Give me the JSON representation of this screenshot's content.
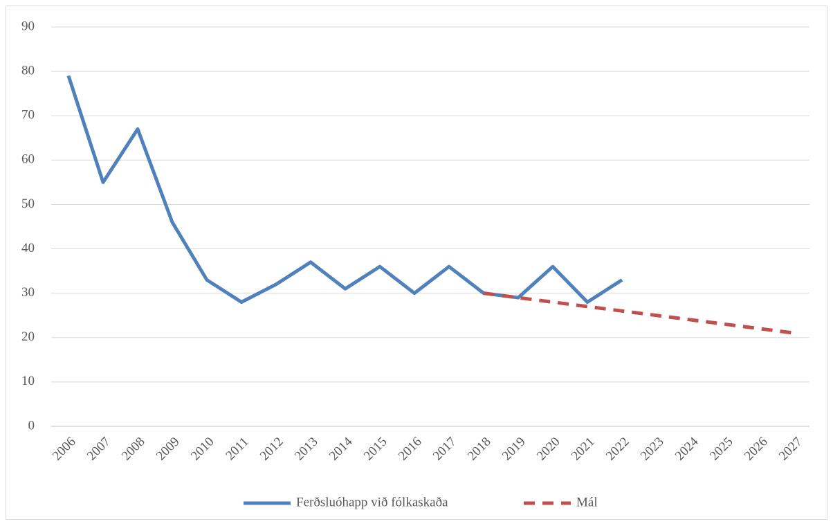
{
  "chart_data": {
    "type": "line",
    "categories": [
      "2006",
      "2007",
      "2008",
      "2009",
      "2010",
      "2011",
      "2012",
      "2013",
      "2014",
      "2015",
      "2016",
      "2017",
      "2018",
      "2019",
      "2020",
      "2021",
      "2022",
      "2023",
      "2024",
      "2025",
      "2026",
      "2027"
    ],
    "series": [
      {
        "name": "Ferðsluóhapp við fólkaskaða",
        "color": "#4f81bd",
        "line_style": "solid",
        "values": [
          79,
          55,
          67,
          46,
          33,
          28,
          32,
          37,
          31,
          36,
          30,
          36,
          30,
          29,
          36,
          28,
          33,
          null,
          null,
          null,
          null,
          null
        ]
      },
      {
        "name": "Mál",
        "color": "#c0504d",
        "line_style": "dashed",
        "values": [
          null,
          null,
          null,
          null,
          null,
          null,
          null,
          null,
          null,
          null,
          null,
          null,
          30,
          29,
          28,
          27,
          26,
          25,
          24,
          23,
          22,
          21
        ]
      }
    ],
    "ylim": [
      0,
      90
    ],
    "yticks": [
      0,
      10,
      20,
      30,
      40,
      50,
      60,
      70,
      80,
      90
    ],
    "grid": true,
    "legend": "bottom"
  }
}
